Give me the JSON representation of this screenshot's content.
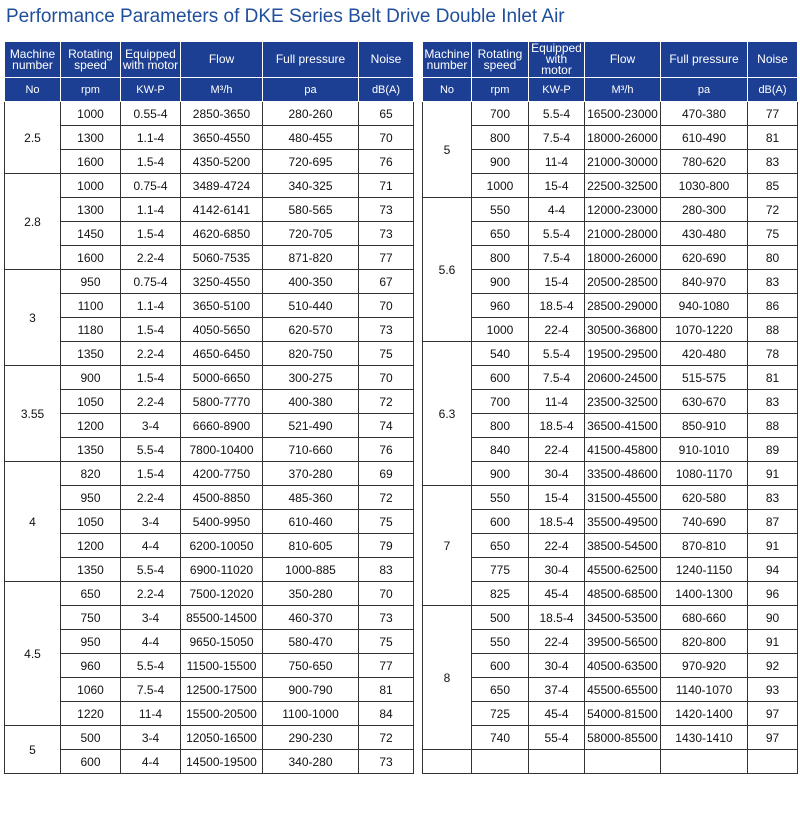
{
  "title": "Performance Parameters of DKE Series Belt Drive Double Inlet Air",
  "tables": [
    {
      "header": [
        "Machine number",
        "Rotating speed",
        "Equipped with motor",
        "Flow",
        "Full pressure",
        "Noise"
      ],
      "units": [
        "No",
        "rpm",
        "KW-P",
        "M³/h",
        "pa",
        "dB(A)"
      ],
      "groups": [
        {
          "machine": "2.5",
          "rows": [
            [
              1000,
              "0.55-4",
              "2850-3650",
              "280-260",
              65
            ],
            [
              1300,
              "1.1-4",
              "3650-4550",
              "480-455",
              70
            ],
            [
              1600,
              "1.5-4",
              "4350-5200",
              "720-695",
              76
            ]
          ]
        },
        {
          "machine": "2.8",
          "rows": [
            [
              1000,
              "0.75-4",
              "3489-4724",
              "340-325",
              71
            ],
            [
              1300,
              "1.1-4",
              "4142-6141",
              "580-565",
              73
            ],
            [
              1450,
              "1.5-4",
              "4620-6850",
              "720-705",
              73
            ],
            [
              1600,
              "2.2-4",
              "5060-7535",
              "871-820",
              77
            ]
          ]
        },
        {
          "machine": "3",
          "rows": [
            [
              950,
              "0.75-4",
              "3250-4550",
              "400-350",
              67
            ],
            [
              1100,
              "1.1-4",
              "3650-5100",
              "510-440",
              70
            ],
            [
              1180,
              "1.5-4",
              "4050-5650",
              "620-570",
              73
            ],
            [
              1350,
              "2.2-4",
              "4650-6450",
              "820-750",
              75
            ]
          ]
        },
        {
          "machine": "3.55",
          "rows": [
            [
              900,
              "1.5-4",
              "5000-6650",
              "300-275",
              70
            ],
            [
              1050,
              "2.2-4",
              "5800-7770",
              "400-380",
              72
            ],
            [
              1200,
              "3-4",
              "6660-8900",
              "521-490",
              74
            ],
            [
              1350,
              "5.5-4",
              "7800-10400",
              "710-660",
              76
            ]
          ]
        },
        {
          "machine": "4",
          "rows": [
            [
              820,
              "1.5-4",
              "4200-7750",
              "370-280",
              69
            ],
            [
              950,
              "2.2-4",
              "4500-8850",
              "485-360",
              72
            ],
            [
              1050,
              "3-4",
              "5400-9950",
              "610-460",
              75
            ],
            [
              1200,
              "4-4",
              "6200-10050",
              "810-605",
              79
            ],
            [
              1350,
              "5.5-4",
              "6900-11020",
              "1000-885",
              83
            ]
          ]
        },
        {
          "machine": "4.5",
          "rows": [
            [
              650,
              "2.2-4",
              "7500-12020",
              "350-280",
              70
            ],
            [
              750,
              "3-4",
              "85500-14500",
              "460-370",
              73
            ],
            [
              950,
              "4-4",
              "9650-15050",
              "580-470",
              75
            ],
            [
              960,
              "5.5-4",
              "11500-15500",
              "750-650",
              77
            ],
            [
              1060,
              "7.5-4",
              "12500-17500",
              "900-790",
              81
            ],
            [
              1220,
              "11-4",
              "15500-20500",
              "1100-1000",
              84
            ]
          ]
        },
        {
          "machine": "5",
          "rows": [
            [
              500,
              "3-4",
              "12050-16500",
              "290-230",
              72
            ],
            [
              600,
              "4-4",
              "14500-19500",
              "340-280",
              73
            ]
          ]
        }
      ]
    },
    {
      "header": [
        "Machine number",
        "Rotating speed",
        "Equipped with motor",
        "Flow",
        "Full pressure",
        "Noise"
      ],
      "units": [
        "No",
        "rpm",
        "KW-P",
        "M³/h",
        "pa",
        "dB(A)"
      ],
      "groups": [
        {
          "machine": "5",
          "rows": [
            [
              700,
              "5.5-4",
              "16500-23000",
              "470-380",
              77
            ],
            [
              800,
              "7.5-4",
              "18000-26000",
              "610-490",
              81
            ],
            [
              900,
              "11-4",
              "21000-30000",
              "780-620",
              83
            ],
            [
              1000,
              "15-4",
              "22500-32500",
              "1030-800",
              85
            ]
          ]
        },
        {
          "machine": "5.6",
          "rows": [
            [
              550,
              "4-4",
              "12000-23000",
              "280-300",
              72
            ],
            [
              650,
              "5.5-4",
              "21000-28000",
              "430-480",
              75
            ],
            [
              800,
              "7.5-4",
              "18000-26000",
              "620-690",
              80
            ],
            [
              900,
              "15-4",
              "20500-28500",
              "840-970",
              83
            ],
            [
              960,
              "18.5-4",
              "28500-29000",
              "940-1080",
              86
            ],
            [
              1000,
              "22-4",
              "30500-36800",
              "1070-1220",
              88
            ]
          ]
        },
        {
          "machine": "6.3",
          "rows": [
            [
              540,
              "5.5-4",
              "19500-29500",
              "420-480",
              78
            ],
            [
              600,
              "7.5-4",
              "20600-24500",
              "515-575",
              81
            ],
            [
              700,
              "11-4",
              "23500-32500",
              "630-670",
              83
            ],
            [
              800,
              "18.5-4",
              "36500-41500",
              "850-910",
              88
            ],
            [
              840,
              "22-4",
              "41500-45800",
              "910-1010",
              89
            ],
            [
              900,
              "30-4",
              "33500-48600",
              "1080-1170",
              91
            ]
          ]
        },
        {
          "machine": "7",
          "rows": [
            [
              550,
              "15-4",
              "31500-45500",
              "620-580",
              83
            ],
            [
              600,
              "18.5-4",
              "35500-49500",
              "740-690",
              87
            ],
            [
              650,
              "22-4",
              "38500-54500",
              "870-810",
              91
            ],
            [
              775,
              "30-4",
              "45500-62500",
              "1240-1150",
              94
            ],
            [
              825,
              "45-4",
              "48500-68500",
              "1400-1300",
              96
            ]
          ]
        },
        {
          "machine": "8",
          "rows": [
            [
              500,
              "18.5-4",
              "34500-53500",
              "680-660",
              90
            ],
            [
              550,
              "22-4",
              "39500-56500",
              "820-800",
              91
            ],
            [
              600,
              "30-4",
              "40500-63500",
              "970-920",
              92
            ],
            [
              650,
              "37-4",
              "45500-65500",
              "1140-1070",
              93
            ],
            [
              725,
              "45-4",
              "54000-81500",
              "1420-1400",
              97
            ],
            [
              740,
              "55-4",
              "58000-85500",
              "1430-1410",
              97
            ]
          ]
        }
      ]
    }
  ]
}
